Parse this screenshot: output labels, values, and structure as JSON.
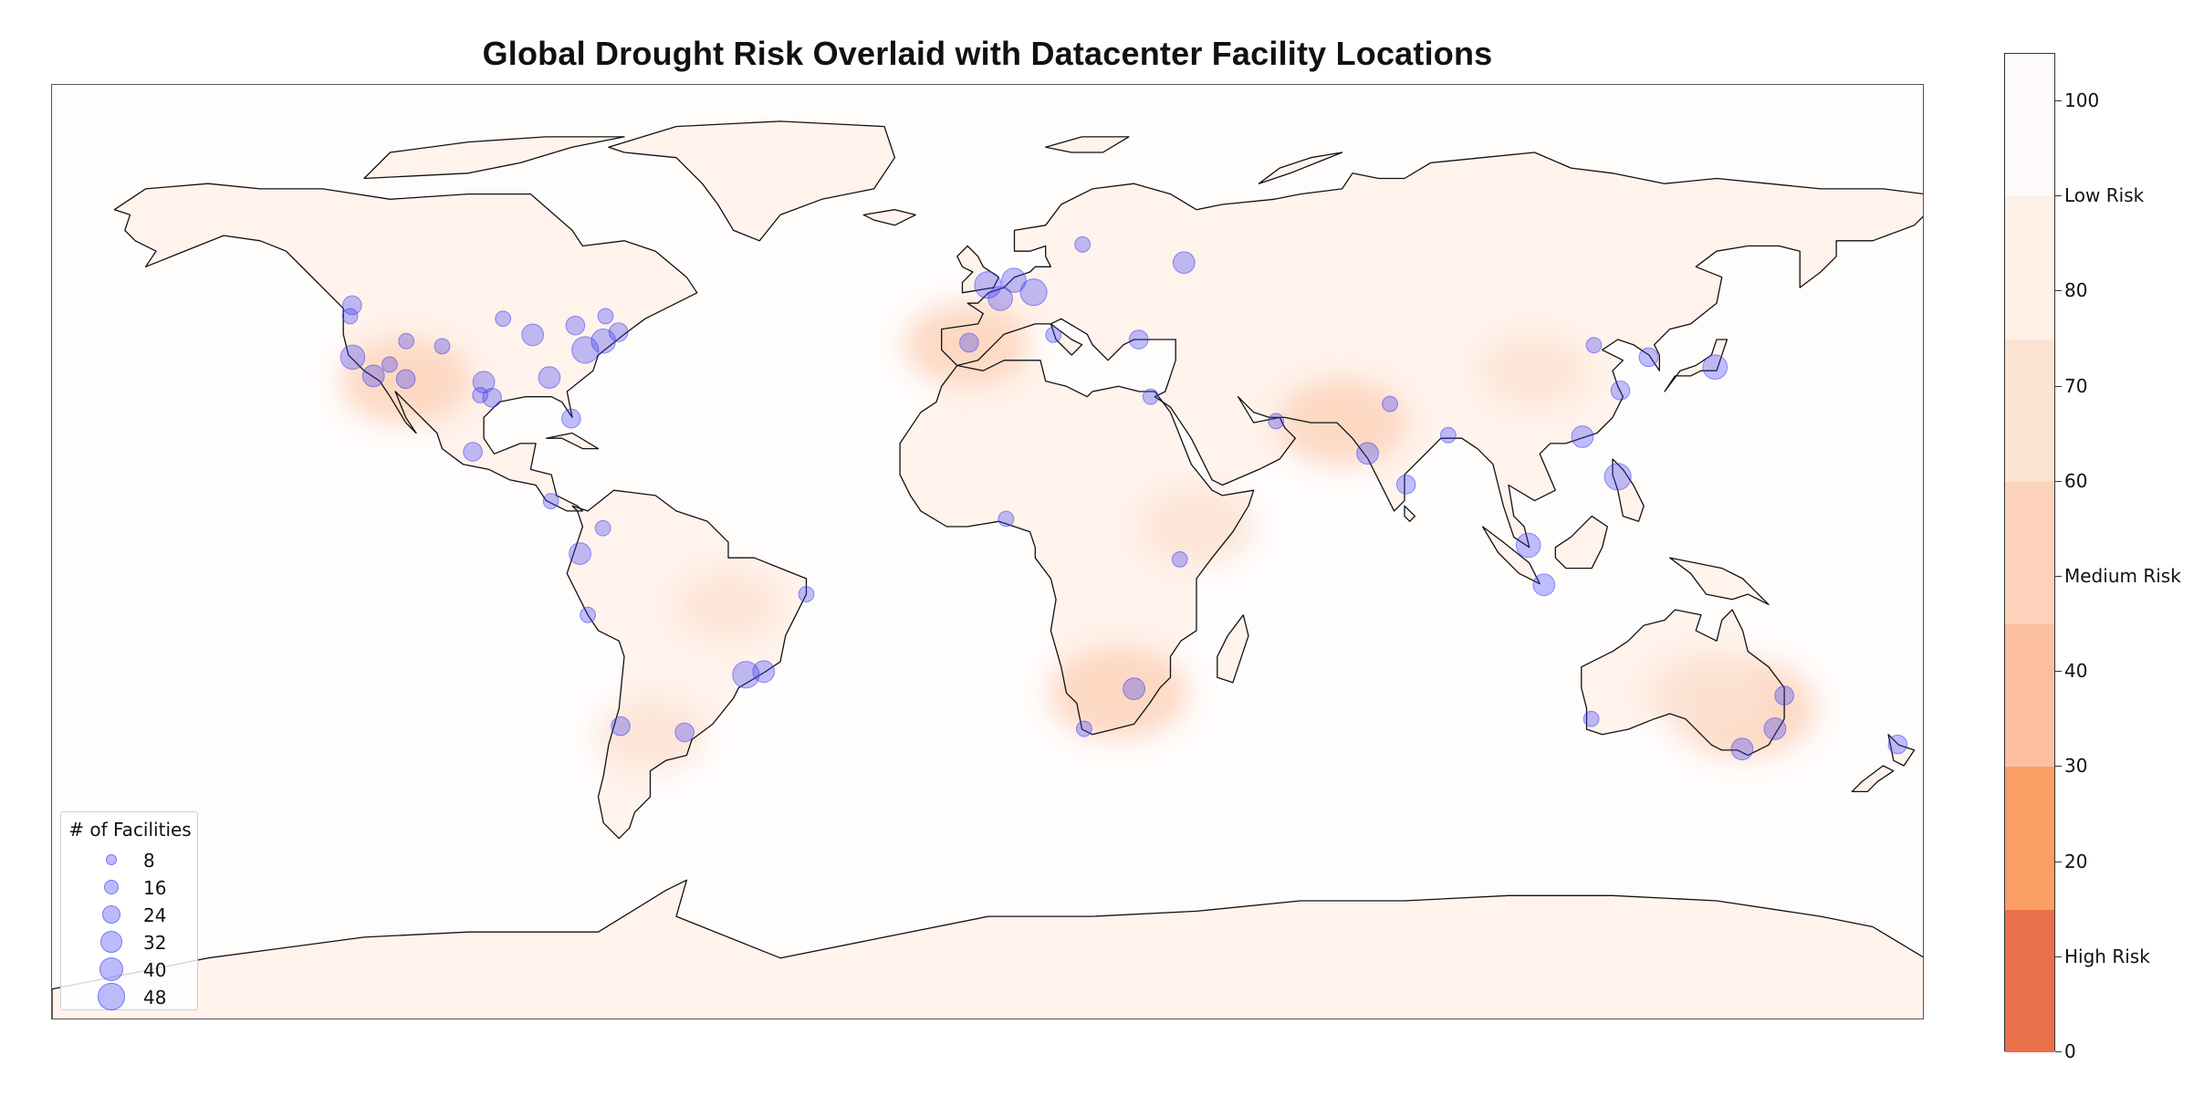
{
  "title": "Global Drought Risk Overlaid with Datacenter Facility Locations",
  "legend": {
    "title": "# of Facilities",
    "entries": [
      "8",
      "16",
      "24",
      "32",
      "40",
      "48"
    ],
    "sizes": [
      8,
      16,
      24,
      32,
      40,
      48
    ]
  },
  "colorbar": {
    "ticks": [
      {
        "value": 0,
        "label": "0"
      },
      {
        "value": 10,
        "label": "High Risk"
      },
      {
        "value": 20,
        "label": "20"
      },
      {
        "value": 30,
        "label": "30"
      },
      {
        "value": 40,
        "label": "40"
      },
      {
        "value": 50,
        "label": "Medium Risk"
      },
      {
        "value": 60,
        "label": "60"
      },
      {
        "value": 70,
        "label": "70"
      },
      {
        "value": 80,
        "label": "80"
      },
      {
        "value": 90,
        "label": "Low Risk"
      },
      {
        "value": 100,
        "label": "100"
      }
    ],
    "range": [
      0,
      105
    ],
    "bands": [
      {
        "from": 0,
        "to": 15,
        "color": "#e8704a"
      },
      {
        "from": 15,
        "to": 30,
        "color": "#fb9e66"
      },
      {
        "from": 30,
        "to": 45,
        "color": "#fcc0a0"
      },
      {
        "from": 45,
        "to": 60,
        "color": "#fdd3bb"
      },
      {
        "from": 60,
        "to": 75,
        "color": "#fde3d4"
      },
      {
        "from": 75,
        "to": 90,
        "color": "#fff0e8"
      },
      {
        "from": 90,
        "to": 105,
        "color": "#fffafa"
      }
    ]
  },
  "colors": {
    "marker": "#3c3cf5",
    "coast": "#111111",
    "background": "#fffcfc",
    "risk_high": "#e8704a",
    "risk_low": "#fffafa"
  },
  "chart_data": {
    "type": "scatter",
    "title": "Global Drought Risk Overlaid with Datacenter Facility Locations",
    "projection": "PlateCarree",
    "xlim": [
      -180,
      180
    ],
    "ylim": [
      -90,
      90
    ],
    "color_scale": "drought risk (0 = High Risk, 100 = Low Risk)",
    "risk_hotspots": [
      {
        "lon": 145,
        "lat": -30,
        "risk": 45
      },
      {
        "lon": 138,
        "lat": -27,
        "risk": 62
      },
      {
        "lon": 25,
        "lat": -27,
        "risk": 50
      },
      {
        "lon": 68,
        "lat": 25,
        "risk": 55
      },
      {
        "lon": -112,
        "lat": 33,
        "risk": 55
      },
      {
        "lon": -4,
        "lat": 40,
        "risk": 58
      },
      {
        "lon": 105,
        "lat": 35,
        "risk": 70
      },
      {
        "lon": 40,
        "lat": 5,
        "risk": 65
      },
      {
        "lon": -50,
        "lat": -10,
        "risk": 72
      },
      {
        "lon": -65,
        "lat": -35,
        "risk": 70
      }
    ],
    "facilities": [
      {
        "lon": -122.3,
        "lat": 47.6,
        "count": 24
      },
      {
        "lon": -122.7,
        "lat": 45.5,
        "count": 16
      },
      {
        "lon": -122.2,
        "lat": 37.6,
        "count": 40
      },
      {
        "lon": -118.2,
        "lat": 34.0,
        "count": 32
      },
      {
        "lon": -115.1,
        "lat": 36.2,
        "count": 16
      },
      {
        "lon": -112.0,
        "lat": 33.4,
        "count": 24
      },
      {
        "lon": -111.9,
        "lat": 40.7,
        "count": 16
      },
      {
        "lon": -105.0,
        "lat": 39.7,
        "count": 16
      },
      {
        "lon": -97.0,
        "lat": 32.8,
        "count": 32
      },
      {
        "lon": -95.4,
        "lat": 29.8,
        "count": 24
      },
      {
        "lon": -97.7,
        "lat": 30.3,
        "count": 16
      },
      {
        "lon": -93.3,
        "lat": 45.0,
        "count": 16
      },
      {
        "lon": -87.6,
        "lat": 41.9,
        "count": 32
      },
      {
        "lon": -84.4,
        "lat": 33.7,
        "count": 32
      },
      {
        "lon": -80.2,
        "lat": 25.8,
        "count": 24
      },
      {
        "lon": -77.5,
        "lat": 39.0,
        "count": 48
      },
      {
        "lon": -74.0,
        "lat": 40.7,
        "count": 40
      },
      {
        "lon": -71.1,
        "lat": 42.4,
        "count": 24
      },
      {
        "lon": -79.4,
        "lat": 43.7,
        "count": 24
      },
      {
        "lon": -73.6,
        "lat": 45.5,
        "count": 16
      },
      {
        "lon": -99.1,
        "lat": 19.4,
        "count": 24
      },
      {
        "lon": -84.1,
        "lat": 9.9,
        "count": 16
      },
      {
        "lon": -74.1,
        "lat": 4.7,
        "count": 16
      },
      {
        "lon": -78.5,
        "lat": -0.2,
        "count": 32
      },
      {
        "lon": -77.0,
        "lat": -12.0,
        "count": 16
      },
      {
        "lon": -46.6,
        "lat": -23.5,
        "count": 48
      },
      {
        "lon": -43.2,
        "lat": -22.9,
        "count": 32
      },
      {
        "lon": -58.4,
        "lat": -34.6,
        "count": 24
      },
      {
        "lon": -70.7,
        "lat": -33.4,
        "count": 24
      },
      {
        "lon": -35.0,
        "lat": -8.0,
        "count": 16
      },
      {
        "lon": -0.1,
        "lat": 51.5,
        "count": 48
      },
      {
        "lon": 2.3,
        "lat": 48.9,
        "count": 40
      },
      {
        "lon": 8.7,
        "lat": 50.1,
        "count": 48
      },
      {
        "lon": 4.9,
        "lat": 52.4,
        "count": 40
      },
      {
        "lon": -3.7,
        "lat": 40.4,
        "count": 24
      },
      {
        "lon": 12.5,
        "lat": 41.9,
        "count": 16
      },
      {
        "lon": 18.1,
        "lat": 59.3,
        "count": 16
      },
      {
        "lon": 37.6,
        "lat": 55.8,
        "count": 32
      },
      {
        "lon": 28.9,
        "lat": 41.0,
        "count": 24
      },
      {
        "lon": 55.3,
        "lat": 25.3,
        "count": 16
      },
      {
        "lon": 72.9,
        "lat": 19.1,
        "count": 32
      },
      {
        "lon": 77.2,
        "lat": 28.6,
        "count": 16
      },
      {
        "lon": 80.3,
        "lat": 13.1,
        "count": 24
      },
      {
        "lon": 88.4,
        "lat": 22.6,
        "count": 16
      },
      {
        "lon": 103.8,
        "lat": 1.4,
        "count": 40
      },
      {
        "lon": 106.8,
        "lat": -6.2,
        "count": 32
      },
      {
        "lon": 114.2,
        "lat": 22.3,
        "count": 32
      },
      {
        "lon": 121.5,
        "lat": 31.2,
        "count": 24
      },
      {
        "lon": 116.4,
        "lat": 39.9,
        "count": 16
      },
      {
        "lon": 126.9,
        "lat": 37.6,
        "count": 24
      },
      {
        "lon": 139.7,
        "lat": 35.7,
        "count": 40
      },
      {
        "lon": 121.0,
        "lat": 14.6,
        "count": 48
      },
      {
        "lon": 151.2,
        "lat": -33.9,
        "count": 32
      },
      {
        "lon": 144.9,
        "lat": -37.8,
        "count": 32
      },
      {
        "lon": 153.0,
        "lat": -27.5,
        "count": 24
      },
      {
        "lon": 115.9,
        "lat": -32.0,
        "count": 16
      },
      {
        "lon": 174.8,
        "lat": -36.9,
        "count": 24
      },
      {
        "lon": 18.4,
        "lat": -33.9,
        "count": 16
      },
      {
        "lon": 28.0,
        "lat": -26.2,
        "count": 32
      },
      {
        "lon": 36.8,
        "lat": -1.3,
        "count": 16
      },
      {
        "lon": 3.4,
        "lat": 6.5,
        "count": 16
      },
      {
        "lon": 31.2,
        "lat": 30.0,
        "count": 16
      }
    ]
  }
}
